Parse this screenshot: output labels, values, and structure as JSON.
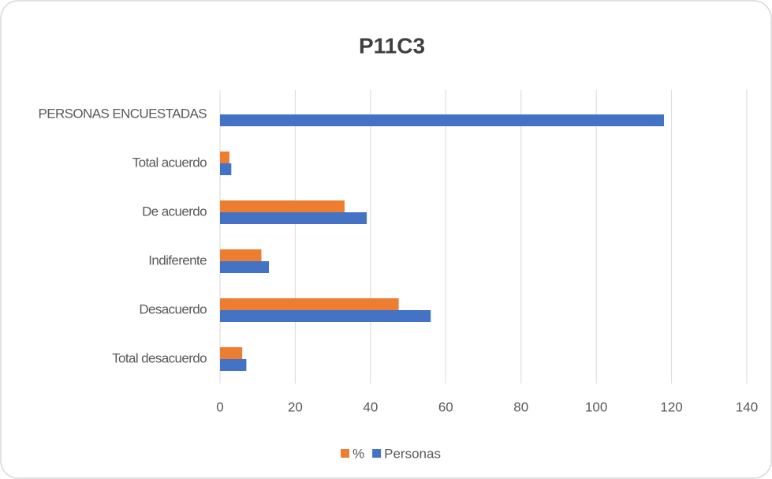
{
  "chart_data": {
    "type": "hbar",
    "title": "P11C3",
    "categories": [
      "PERSONAS ENCUESTADAS",
      "Total acuerdo",
      "De acuerdo",
      "Indiferente",
      "Desacuerdo",
      "Total desacuerdo"
    ],
    "series": [
      {
        "name": "%",
        "color": "#ed7d31",
        "values": [
          null,
          2.5,
          33.1,
          11,
          47.5,
          5.9
        ]
      },
      {
        "name": "Personas",
        "color": "#4472c4",
        "values": [
          118,
          3,
          39,
          13,
          56,
          7
        ]
      }
    ],
    "xlim": [
      0,
      140
    ],
    "xticks": [
      0,
      20,
      40,
      60,
      80,
      100,
      120,
      140
    ],
    "grid": true,
    "legend": "bottom"
  }
}
